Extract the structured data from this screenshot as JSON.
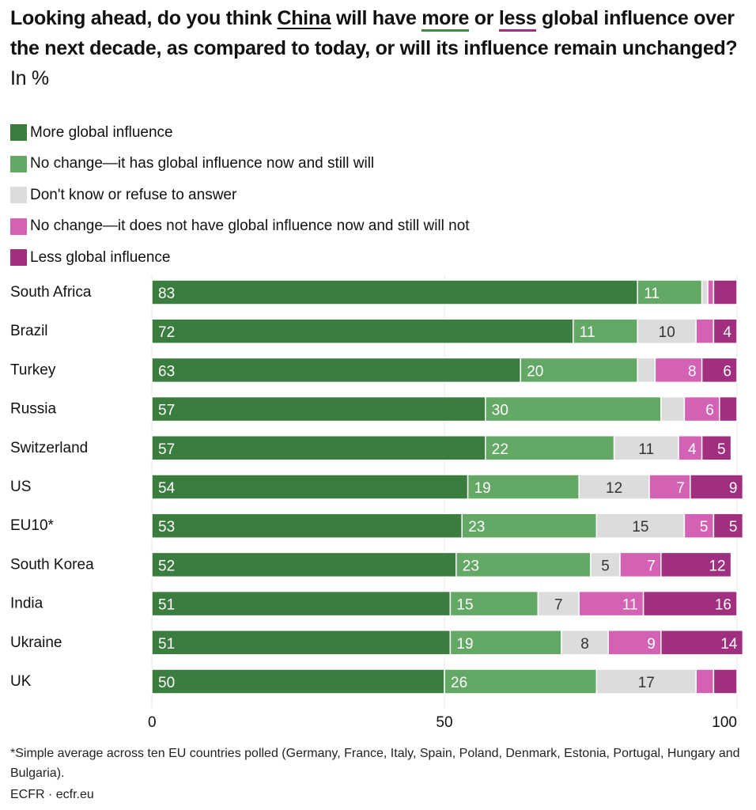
{
  "title": {
    "part1": "Looking ahead, do you think ",
    "china": "China",
    "part2": " will have ",
    "more": "more",
    "part3": " or ",
    "less": "less",
    "part4": " global influence over the next decade, as compared to today, or will its influence remain unchanged?",
    "unit": " In %"
  },
  "colors": {
    "more": "#3b7d3f",
    "no_change_has": "#64a865",
    "dont_know": "#dcdcdc",
    "no_change_not": "#d462b4",
    "less": "#a0307f"
  },
  "chart_data": {
    "type": "bar",
    "orientation": "horizontal-stacked",
    "title": "Looking ahead, do you think China will have more or less global influence over the next decade, as compared to today, or will its influence remain unchanged? In %",
    "xlabel": "",
    "ylabel": "",
    "xlim": [
      0,
      100
    ],
    "xticks": [
      "0",
      "50",
      "100"
    ],
    "grid": true,
    "legend_position": "top-left",
    "categories": [
      "South Africa",
      "Brazil",
      "Turkey",
      "Russia",
      "Switzerland",
      "US",
      "EU10*",
      "South Korea",
      "India",
      "Ukraine",
      "UK"
    ],
    "series": [
      {
        "name": "More global influence",
        "key": "more",
        "values": [
          83,
          72,
          63,
          57,
          57,
          54,
          53,
          52,
          51,
          51,
          50
        ],
        "labels": [
          "83",
          "72",
          "63",
          "57",
          "57",
          "54",
          "53",
          "52",
          "51",
          "51",
          "50"
        ]
      },
      {
        "name": "No change—it has global influence now and still will",
        "key": "no_change_has",
        "values": [
          11,
          11,
          20,
          30,
          22,
          19,
          23,
          23,
          15,
          19,
          26
        ],
        "labels": [
          "11",
          "11",
          "20",
          "30",
          "22",
          "19",
          "23",
          "23",
          "15",
          "19",
          "26"
        ]
      },
      {
        "name": "Don't know or refuse to answer",
        "key": "dont_know",
        "values": [
          1,
          10,
          3,
          4,
          11,
          12,
          15,
          5,
          7,
          8,
          17
        ],
        "labels": [
          "",
          "10",
          "",
          "",
          "11",
          "12",
          "15",
          "5",
          "7",
          "8",
          "17"
        ]
      },
      {
        "name": "No change—it does not have global influence now and still will not",
        "key": "no_change_not",
        "values": [
          1,
          3,
          8,
          6,
          4,
          7,
          5,
          7,
          11,
          9,
          3
        ],
        "labels": [
          "",
          "",
          "8",
          "6",
          "4",
          "7",
          "5",
          "7",
          "11",
          "9",
          ""
        ]
      },
      {
        "name": "Less global influence",
        "key": "less",
        "values": [
          4,
          4,
          6,
          3,
          5,
          9,
          5,
          12,
          16,
          14,
          4
        ],
        "labels": [
          "",
          "4",
          "6",
          "",
          "5",
          "9",
          "5",
          "12",
          "16",
          "14",
          ""
        ]
      }
    ]
  },
  "footnote": "*Simple average across ten EU countries polled (Germany, France, Italy, Spain, Poland, Denmark, Estonia, Portugal, Hungary and Bulgaria).",
  "source": "ECFR · ecfr.eu"
}
